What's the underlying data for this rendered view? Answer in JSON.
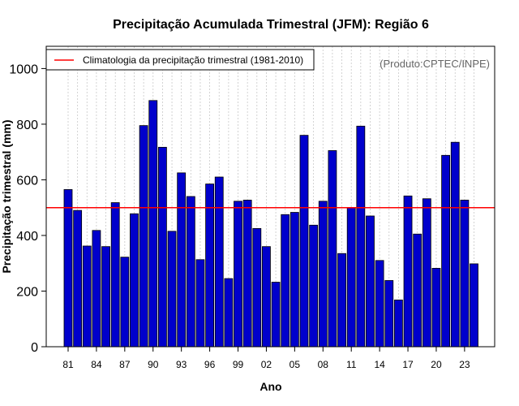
{
  "chart_data": {
    "type": "bar",
    "title": "Precipitação Acumulada Trimestral (JFM): Região 6",
    "xlabel": "Ano",
    "ylabel": "Precipitação trimestral (mm)",
    "ylim": [
      0,
      1080
    ],
    "yticks": [
      0,
      200,
      400,
      600,
      800,
      1000
    ],
    "categories": [
      "1981",
      "1982",
      "1983",
      "1984",
      "1985",
      "1986",
      "1987",
      "1988",
      "1989",
      "1990",
      "1991",
      "1992",
      "1993",
      "1994",
      "1995",
      "1996",
      "1997",
      "1998",
      "1999",
      "2000",
      "2001",
      "2002",
      "2003",
      "2004",
      "2005",
      "2006",
      "2007",
      "2008",
      "2009",
      "2010",
      "2011",
      "2012",
      "2013",
      "2014",
      "2015",
      "2016",
      "2017",
      "2018",
      "2019",
      "2020",
      "2021",
      "2022",
      "2023",
      "2024"
    ],
    "xtick_labels": [
      "81",
      "84",
      "87",
      "90",
      "93",
      "96",
      "99",
      "02",
      "05",
      "08",
      "11",
      "14",
      "17",
      "20",
      "23"
    ],
    "xtick_every": 3,
    "values": [
      565,
      490,
      362,
      418,
      360,
      518,
      322,
      478,
      795,
      885,
      717,
      415,
      625,
      540,
      313,
      585,
      610,
      245,
      523,
      527,
      425,
      360,
      232,
      475,
      483,
      760,
      437,
      523,
      705,
      335,
      500,
      793,
      470,
      310,
      238,
      168,
      542,
      405,
      532,
      282,
      688,
      735,
      527,
      298
    ],
    "bar_color": "#0000cc",
    "climatology": {
      "value": 500,
      "color": "#ff0000",
      "label": "Climatologia da precipitação trimestral (1981-2010)"
    },
    "legend_position": "top-left",
    "grid": "vertical dotted",
    "credit": "(Produto:CPTEC/INPE)"
  }
}
